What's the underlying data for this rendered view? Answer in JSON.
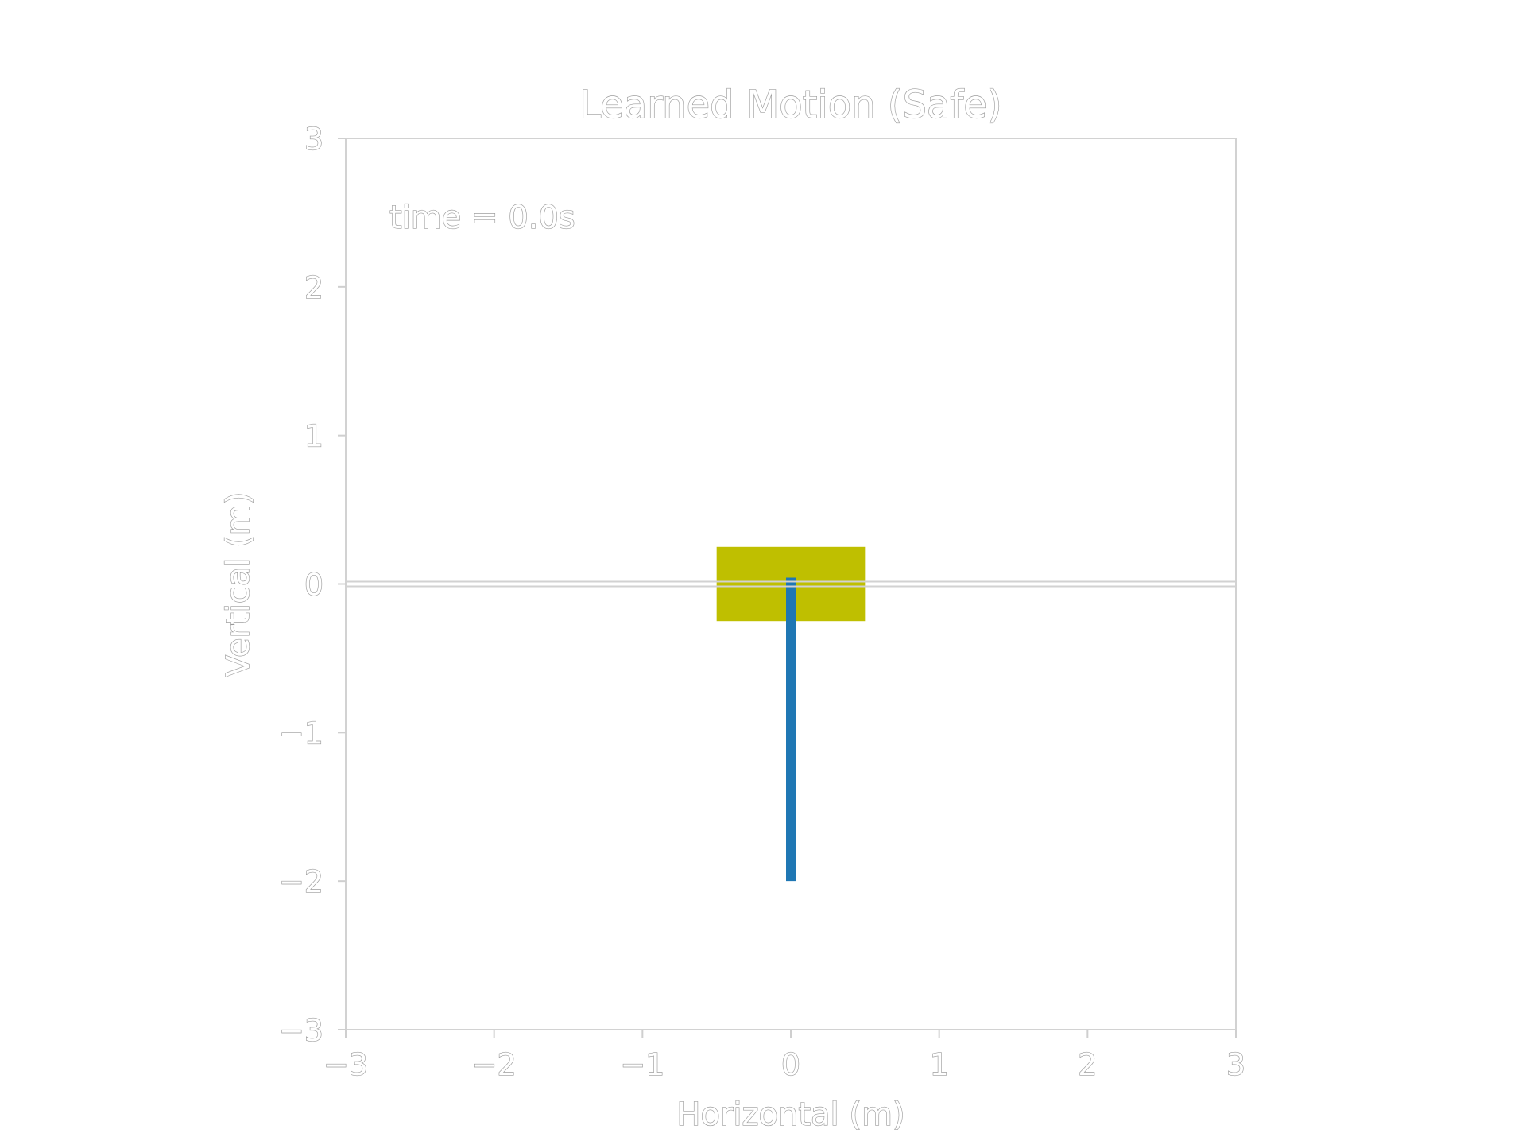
{
  "chart_data": {
    "type": "scatter",
    "title": "Learned Motion (Safe)",
    "xlabel": "Horizontal (m)",
    "ylabel": "Vertical (m)",
    "xlim": [
      -3,
      3
    ],
    "ylim": [
      -3,
      3
    ],
    "xticks": [
      -3,
      -2,
      -1,
      0,
      1,
      2,
      3
    ],
    "yticks": [
      -3,
      -2,
      -1,
      0,
      1,
      2,
      3
    ],
    "xtick_labels": [
      "−3",
      "−2",
      "−1",
      "0",
      "1",
      "2",
      "3"
    ],
    "ytick_labels": [
      "−3",
      "−2",
      "−1",
      "0",
      "1",
      "2",
      "3"
    ],
    "grid": false,
    "annotation": "time = 0.0s",
    "ground": {
      "y": 0.0
    },
    "cart": {
      "x_min": -0.5,
      "x_max": 0.5,
      "y_min": -0.25,
      "y_max": 0.25,
      "color": "#bfbf00"
    },
    "pendulum": {
      "x": [
        0.0,
        0.0
      ],
      "y": [
        0.0,
        -2.0
      ],
      "color": "#1f77b4"
    }
  }
}
